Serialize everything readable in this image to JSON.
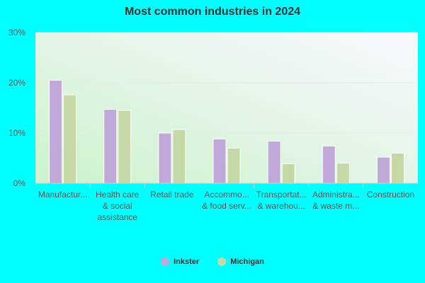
{
  "chart_data": {
    "type": "bar",
    "title": "Most common industries in 2024",
    "categories": [
      [
        "Manufactur..."
      ],
      [
        "Health care",
        "& social",
        "assistance"
      ],
      [
        "Retail trade"
      ],
      [
        "Accommo...",
        "& food serv..."
      ],
      [
        "Transportat...",
        "& warehou..."
      ],
      [
        "Administra...",
        "& waste m..."
      ],
      [
        "Construction"
      ]
    ],
    "series": [
      {
        "name": "Inkster",
        "color": "#c0a9d9",
        "values": [
          20.5,
          14.7,
          10.0,
          8.8,
          8.4,
          7.4,
          5.2
        ]
      },
      {
        "name": "Michigan",
        "color": "#c5d9a6",
        "values": [
          17.6,
          14.5,
          10.7,
          7.0,
          3.9,
          4.0,
          6.0
        ]
      }
    ],
    "ylim": [
      0,
      30
    ],
    "yticks": [
      "0%",
      "10%",
      "20%",
      "30%"
    ],
    "grid": true,
    "legend": "bottom-center"
  }
}
